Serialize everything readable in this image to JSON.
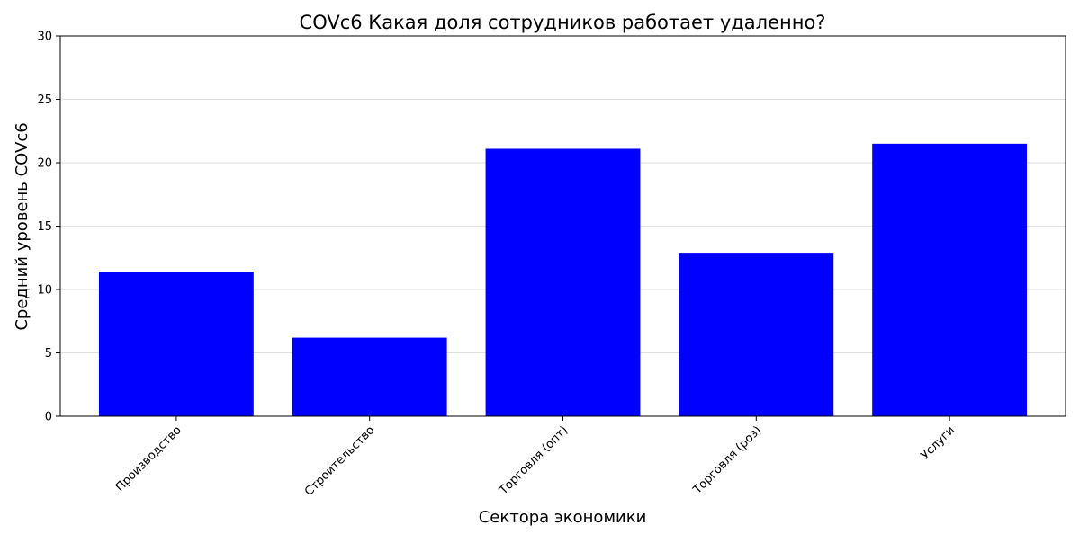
{
  "chart_data": {
    "type": "bar",
    "title": "COVc6 Какая доля сотрудников работает удаленно?",
    "xlabel": "Сектора экономики",
    "ylabel": "Средний уровень COVc6",
    "categories": [
      "Производство",
      "Строительство",
      "Торговля (опт)",
      "Торговля (роз)",
      "Услуги"
    ],
    "values": [
      11.4,
      6.2,
      21.1,
      12.9,
      21.5
    ],
    "ylim": [
      0,
      30
    ],
    "yticks": [
      0,
      5,
      10,
      15,
      20,
      25,
      30
    ],
    "bar_color": "#0000ff",
    "grid": "y",
    "legend": "none"
  }
}
